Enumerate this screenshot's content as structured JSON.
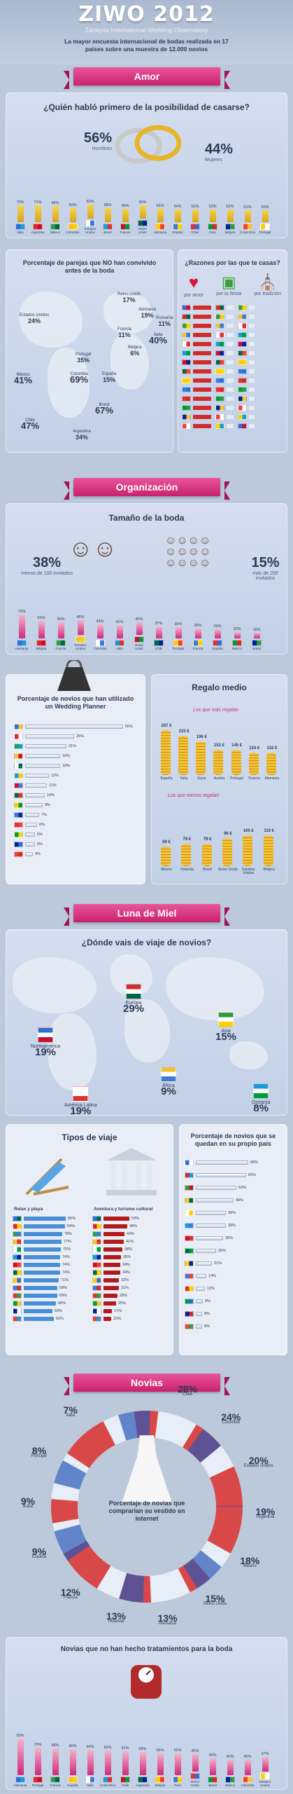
{
  "header": {
    "title": "ZIWO 2012",
    "subtitle": "Zankyou International Wedding Observatory",
    "lead": "La mayor encuesta internacional de bodas realizada en 17 países sobre una muestra de 12.000 novios"
  },
  "colors": {
    "accent": "#d1277a",
    "red": "#d42a2a",
    "blue": "#4a8fd6",
    "panel": "#cfd9ec"
  },
  "sections": {
    "amor": "Amor",
    "organizacion": "Organización",
    "luna": "Luna de Miel",
    "novias": "Novias"
  },
  "amor": {
    "question": "¿Quién habló primero de la posibilidad de casarse?",
    "men_pct": "56%",
    "men_label": "Hombres",
    "women_pct": "44%",
    "women_label": "Mujeres",
    "countries": [
      {
        "name": "Italia",
        "pct": "70%",
        "h": 0.7
      },
      {
        "name": "Argentina",
        "pct": "71%",
        "h": 0.71
      },
      {
        "name": "México",
        "pct": "68%",
        "h": 0.68
      },
      {
        "name": "Colombia",
        "pct": "60%",
        "h": 0.6
      },
      {
        "name": "Estados Unidos",
        "pct": "60%",
        "h": 0.6
      },
      {
        "name": "Brasil",
        "pct": "58%",
        "h": 0.58
      },
      {
        "name": "Francia",
        "pct": "56%",
        "h": 0.56
      },
      {
        "name": "Reino Unido",
        "pct": "55%",
        "h": 0.55
      },
      {
        "name": "Alemania",
        "pct": "55%",
        "h": 0.55
      },
      {
        "name": "España",
        "pct": "54%",
        "h": 0.54
      },
      {
        "name": "Chile",
        "pct": "53%",
        "h": 0.53
      },
      {
        "name": "Perú",
        "pct": "53%",
        "h": 0.53
      },
      {
        "name": "Bélgica",
        "pct": "52%",
        "h": 0.52
      },
      {
        "name": "Costa Rica",
        "pct": "51%",
        "h": 0.51
      },
      {
        "name": "Portugal",
        "pct": "50%",
        "h": 0.5
      }
    ],
    "cohab_title": "Porcentaje de parejas que NO han convivido antes de la boda",
    "cohab": [
      {
        "name": "Estados Unidos",
        "pct": "24%"
      },
      {
        "name": "México",
        "pct": "41%"
      },
      {
        "name": "Chile",
        "pct": "47%"
      },
      {
        "name": "Portugal",
        "pct": "35%"
      },
      {
        "name": "Colombia",
        "pct": "69%"
      },
      {
        "name": "España",
        "pct": "15%"
      },
      {
        "name": "Brasil",
        "pct": "67%"
      },
      {
        "name": "Argentina",
        "pct": "34%"
      },
      {
        "name": "Reino Unido",
        "pct": "17%"
      },
      {
        "name": "Alemania",
        "pct": "19%"
      },
      {
        "name": "Francia",
        "pct": "11%"
      },
      {
        "name": "Italia",
        "pct": "40%"
      },
      {
        "name": "Bélgica",
        "pct": "6%"
      },
      {
        "name": "Rumanía",
        "pct": "11%"
      }
    ],
    "reasons_title": "¿Razones por las que te casas?",
    "reasons": [
      "por amor",
      "por la fiesta",
      "por tradición"
    ]
  },
  "organizacion": {
    "size_title": "Tamaño de la boda",
    "less_pct": "38%",
    "less_label": "menos de 100 invitados",
    "more_pct": "15%",
    "more_label": "más de 200 invitados",
    "countries": [
      {
        "name": "Alemania",
        "pct": "73%",
        "h": 0.73
      },
      {
        "name": "Bélgica",
        "pct": "55%",
        "h": 0.55
      },
      {
        "name": "Francia",
        "pct": "50%",
        "h": 0.5
      },
      {
        "name": "Estados Unidos",
        "pct": "45%",
        "h": 0.45
      },
      {
        "name": "Colombia",
        "pct": "43%",
        "h": 0.43
      },
      {
        "name": "Italia",
        "pct": "42%",
        "h": 0.42
      },
      {
        "name": "Reino Unido",
        "pct": "40%",
        "h": 0.4
      },
      {
        "name": "Chile",
        "pct": "37%",
        "h": 0.37
      },
      {
        "name": "Portugal",
        "pct": "35%",
        "h": 0.35
      },
      {
        "name": "Francia",
        "pct": "30%",
        "h": 0.3
      },
      {
        "name": "España",
        "pct": "29%",
        "h": 0.29
      },
      {
        "name": "México",
        "pct": "20%",
        "h": 0.2
      },
      {
        "name": "Brasil",
        "pct": "18%",
        "h": 0.18
      }
    ],
    "planner_title": "Porcentaje de novios que han utilizado un Wedding Planner",
    "planner": [
      {
        "pct": "50%",
        "w": 0.5
      },
      {
        "pct": "25%",
        "w": 0.25
      },
      {
        "pct": "21%",
        "w": 0.21
      },
      {
        "pct": "18%",
        "w": 0.18
      },
      {
        "pct": "18%",
        "w": 0.18
      },
      {
        "pct": "12%",
        "w": 0.12
      },
      {
        "pct": "11%",
        "w": 0.11
      },
      {
        "pct": "10%",
        "w": 0.1
      },
      {
        "pct": "9%",
        "w": 0.09
      },
      {
        "pct": "7%",
        "w": 0.07
      },
      {
        "pct": "6%",
        "w": 0.06
      },
      {
        "pct": "5%",
        "w": 0.05
      },
      {
        "pct": "5%",
        "w": 0.05
      },
      {
        "pct": "4%",
        "w": 0.04
      }
    ],
    "gift_title": "Regalo medio",
    "gift_more": "Los que más regalan",
    "gift_less": "Los que menos regalan",
    "gifts_top": [
      {
        "name": "España",
        "val": "267 €"
      },
      {
        "name": "Italia",
        "val": "233 €"
      },
      {
        "name": "Suiza",
        "val": "196 €"
      },
      {
        "name": "Austria",
        "val": "152 €"
      },
      {
        "name": "Portugal",
        "val": "145 €"
      },
      {
        "name": "Francia",
        "val": "134 €"
      },
      {
        "name": "Alemania",
        "val": "132 €"
      }
    ],
    "gifts_low": [
      {
        "name": "México",
        "val": "69 €"
      },
      {
        "name": "Holanda",
        "val": "79 €"
      },
      {
        "name": "Brasil",
        "val": "79 €"
      },
      {
        "name": "Reino Unido",
        "val": "96 €"
      },
      {
        "name": "Estados Unidos",
        "val": "105 €"
      },
      {
        "name": "Bélgica",
        "val": "110 €"
      }
    ]
  },
  "luna": {
    "question": "¿Dónde vais de viaje de novios?",
    "regions": [
      {
        "name": "Norteamérica",
        "pct": "19%"
      },
      {
        "name": "Europa",
        "pct": "29%"
      },
      {
        "name": "Asia",
        "pct": "15%"
      },
      {
        "name": "África",
        "pct": "9%"
      },
      {
        "name": "América Latina",
        "pct": "19%"
      },
      {
        "name": "Oceanía",
        "pct": "8%"
      }
    ],
    "trip_title": "Tipos de viaje",
    "relax": "Relax y playa",
    "adventure": "Aventura y turismo cultural",
    "relax_vals": [
      "85%",
      "84%",
      "78%",
      "77%",
      "75%",
      "74%",
      "74%",
      "74%",
      "71%",
      "69%",
      "69%",
      "66%",
      "59%",
      "62%"
    ],
    "adv_vals": [
      "53%",
      "48%",
      "43%",
      "41%",
      "38%",
      "35%",
      "34%",
      "34%",
      "32%",
      "31%",
      "28%",
      "25%",
      "17%",
      "15%"
    ],
    "stay_title": "Porcentaje de novios que se quedan en su propio país",
    "stay_vals": [
      "68%",
      "65%",
      "53%",
      "49%",
      "39%",
      "39%",
      "35%",
      "26%",
      "21%",
      "14%",
      "12%",
      "9%",
      "8%",
      "8%"
    ]
  },
  "novias": {
    "ring": [
      {
        "name": "Chile",
        "pct": "28%"
      },
      {
        "name": "Colombia",
        "pct": "24%"
      },
      {
        "name": "Estados Unidos",
        "pct": "20%"
      },
      {
        "name": "Argentina",
        "pct": "19%"
      },
      {
        "name": "México",
        "pct": "18%"
      },
      {
        "name": "Reino Unido",
        "pct": "15%"
      },
      {
        "name": "Alemania",
        "pct": "13%"
      },
      {
        "name": "Holanda",
        "pct": "13%"
      },
      {
        "name": "Francia",
        "pct": "12%"
      },
      {
        "name": "España",
        "pct": "9%"
      },
      {
        "name": "Brasil",
        "pct": "9%"
      },
      {
        "name": "Portugal",
        "pct": "8%"
      },
      {
        "name": "Italia",
        "pct": "7%"
      }
    ],
    "center_text": "Porcentaje de novias que comprarían su vestido en internet",
    "treat_title": "Novias que no han hecho tratamientos para la boda",
    "treat": [
      {
        "name": "Alemania",
        "pct": "93%",
        "h": 0.93
      },
      {
        "name": "Portugal",
        "pct": "70%",
        "h": 0.7
      },
      {
        "name": "Francia",
        "pct": "68%",
        "h": 0.68
      },
      {
        "name": "España",
        "pct": "66%",
        "h": 0.66
      },
      {
        "name": "Italia",
        "pct": "64%",
        "h": 0.64
      },
      {
        "name": "Costa Rica",
        "pct": "62%",
        "h": 0.62
      },
      {
        "name": "Chile",
        "pct": "61%",
        "h": 0.61
      },
      {
        "name": "Argentina",
        "pct": "59%",
        "h": 0.59
      },
      {
        "name": "Bélgica",
        "pct": "56%",
        "h": 0.56
      },
      {
        "name": "Perú",
        "pct": "55%",
        "h": 0.55
      },
      {
        "name": "Reino Unido",
        "pct": "45%",
        "h": 0.45
      },
      {
        "name": "Brasil",
        "pct": "43%",
        "h": 0.43
      },
      {
        "name": "México",
        "pct": "40%",
        "h": 0.4
      },
      {
        "name": "Colombia",
        "pct": "40%",
        "h": 0.4
      },
      {
        "name": "Estados Unidos",
        "pct": "37%",
        "h": 0.37
      }
    ]
  }
}
